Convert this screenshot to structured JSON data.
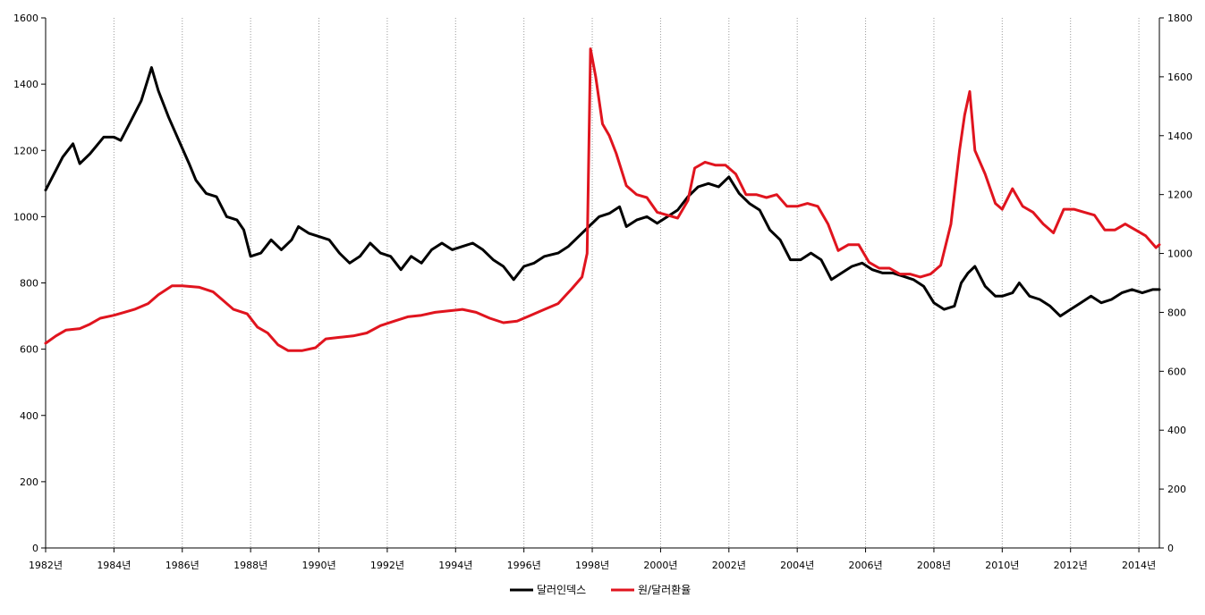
{
  "chart_data": {
    "type": "line",
    "title": "",
    "xlabel": "",
    "x_tick_labels": [
      "1982년",
      "1984년",
      "1986년",
      "1988년",
      "1990년",
      "1992년",
      "1994년",
      "1996년",
      "1998년",
      "2000년",
      "2002년",
      "2004년",
      "2006년",
      "2008년",
      "2010년",
      "2012년",
      "2014년"
    ],
    "x_tick_years": [
      1982,
      1984,
      1986,
      1988,
      1990,
      1992,
      1994,
      1996,
      1998,
      2000,
      2002,
      2004,
      2006,
      2008,
      2010,
      2012,
      2014
    ],
    "xlim": [
      1982.0,
      2014.6
    ],
    "grid": {
      "vertical": true,
      "horizontal": false
    },
    "legend_position": "bottom-center",
    "y_left": {
      "ylim": [
        0,
        1600
      ],
      "ticks": [
        "0",
        "200",
        "400",
        "600",
        "800",
        "1000",
        "1200",
        "1400",
        "1600"
      ]
    },
    "y_right": {
      "ylim": [
        0,
        1800
      ],
      "ticks": [
        "0",
        "200",
        "400",
        "600",
        "800",
        "1000",
        "1200",
        "1400",
        "1600",
        "1800"
      ]
    },
    "series": [
      {
        "name": "달러인덱스",
        "axis": "left",
        "color": "#000000",
        "points": [
          [
            1982.0,
            1080
          ],
          [
            1982.3,
            1140
          ],
          [
            1982.5,
            1180
          ],
          [
            1982.8,
            1220
          ],
          [
            1983.0,
            1160
          ],
          [
            1983.3,
            1190
          ],
          [
            1983.7,
            1240
          ],
          [
            1984.0,
            1240
          ],
          [
            1984.2,
            1230
          ],
          [
            1984.5,
            1290
          ],
          [
            1984.8,
            1350
          ],
          [
            1985.1,
            1450
          ],
          [
            1985.3,
            1380
          ],
          [
            1985.6,
            1300
          ],
          [
            1985.9,
            1230
          ],
          [
            1986.2,
            1160
          ],
          [
            1986.4,
            1110
          ],
          [
            1986.7,
            1070
          ],
          [
            1987.0,
            1060
          ],
          [
            1987.3,
            1000
          ],
          [
            1987.6,
            990
          ],
          [
            1987.8,
            960
          ],
          [
            1988.0,
            880
          ],
          [
            1988.3,
            890
          ],
          [
            1988.6,
            930
          ],
          [
            1988.9,
            900
          ],
          [
            1989.2,
            930
          ],
          [
            1989.4,
            970
          ],
          [
            1989.7,
            950
          ],
          [
            1990.0,
            940
          ],
          [
            1990.3,
            930
          ],
          [
            1990.6,
            890
          ],
          [
            1990.9,
            860
          ],
          [
            1991.2,
            880
          ],
          [
            1991.5,
            920
          ],
          [
            1991.8,
            890
          ],
          [
            1992.1,
            880
          ],
          [
            1992.4,
            840
          ],
          [
            1992.7,
            880
          ],
          [
            1993.0,
            860
          ],
          [
            1993.3,
            900
          ],
          [
            1993.6,
            920
          ],
          [
            1993.9,
            900
          ],
          [
            1994.2,
            910
          ],
          [
            1994.5,
            920
          ],
          [
            1994.8,
            900
          ],
          [
            1995.1,
            870
          ],
          [
            1995.4,
            850
          ],
          [
            1995.7,
            810
          ],
          [
            1996.0,
            850
          ],
          [
            1996.3,
            860
          ],
          [
            1996.6,
            880
          ],
          [
            1997.0,
            890
          ],
          [
            1997.3,
            910
          ],
          [
            1997.6,
            940
          ],
          [
            1997.9,
            970
          ],
          [
            1998.2,
            1000
          ],
          [
            1998.5,
            1010
          ],
          [
            1998.8,
            1030
          ],
          [
            1999.0,
            970
          ],
          [
            1999.3,
            990
          ],
          [
            1999.6,
            1000
          ],
          [
            1999.9,
            980
          ],
          [
            2000.2,
            1000
          ],
          [
            2000.5,
            1020
          ],
          [
            2000.8,
            1060
          ],
          [
            2001.1,
            1090
          ],
          [
            2001.4,
            1100
          ],
          [
            2001.7,
            1090
          ],
          [
            2002.0,
            1120
          ],
          [
            2002.3,
            1070
          ],
          [
            2002.6,
            1040
          ],
          [
            2002.9,
            1020
          ],
          [
            2003.2,
            960
          ],
          [
            2003.5,
            930
          ],
          [
            2003.8,
            870
          ],
          [
            2004.1,
            870
          ],
          [
            2004.4,
            890
          ],
          [
            2004.7,
            870
          ],
          [
            2005.0,
            810
          ],
          [
            2005.3,
            830
          ],
          [
            2005.6,
            850
          ],
          [
            2005.9,
            860
          ],
          [
            2006.2,
            840
          ],
          [
            2006.5,
            830
          ],
          [
            2006.8,
            830
          ],
          [
            2007.1,
            820
          ],
          [
            2007.4,
            810
          ],
          [
            2007.7,
            790
          ],
          [
            2008.0,
            740
          ],
          [
            2008.3,
            720
          ],
          [
            2008.6,
            730
          ],
          [
            2008.8,
            800
          ],
          [
            2009.0,
            830
          ],
          [
            2009.2,
            850
          ],
          [
            2009.5,
            790
          ],
          [
            2009.8,
            760
          ],
          [
            2010.0,
            760
          ],
          [
            2010.3,
            770
          ],
          [
            2010.5,
            800
          ],
          [
            2010.8,
            760
          ],
          [
            2011.1,
            750
          ],
          [
            2011.4,
            730
          ],
          [
            2011.7,
            700
          ],
          [
            2012.0,
            720
          ],
          [
            2012.3,
            740
          ],
          [
            2012.6,
            760
          ],
          [
            2012.9,
            740
          ],
          [
            2013.2,
            750
          ],
          [
            2013.5,
            770
          ],
          [
            2013.8,
            780
          ],
          [
            2014.1,
            770
          ],
          [
            2014.4,
            780
          ],
          [
            2014.6,
            780
          ]
        ]
      },
      {
        "name": "원/달러환율",
        "axis": "right",
        "color": "#e0141e",
        "points": [
          [
            1982.0,
            695
          ],
          [
            1982.3,
            720
          ],
          [
            1982.6,
            740
          ],
          [
            1983.0,
            745
          ],
          [
            1983.3,
            760
          ],
          [
            1983.6,
            780
          ],
          [
            1984.0,
            790
          ],
          [
            1984.3,
            800
          ],
          [
            1984.6,
            810
          ],
          [
            1985.0,
            830
          ],
          [
            1985.3,
            860
          ],
          [
            1985.7,
            890
          ],
          [
            1986.0,
            890
          ],
          [
            1986.5,
            885
          ],
          [
            1986.9,
            870
          ],
          [
            1987.2,
            840
          ],
          [
            1987.5,
            810
          ],
          [
            1987.9,
            795
          ],
          [
            1988.2,
            750
          ],
          [
            1988.5,
            730
          ],
          [
            1988.8,
            690
          ],
          [
            1989.1,
            670
          ],
          [
            1989.5,
            670
          ],
          [
            1989.9,
            680
          ],
          [
            1990.2,
            710
          ],
          [
            1990.6,
            715
          ],
          [
            1991.0,
            720
          ],
          [
            1991.4,
            730
          ],
          [
            1991.8,
            755
          ],
          [
            1992.2,
            770
          ],
          [
            1992.6,
            785
          ],
          [
            1993.0,
            790
          ],
          [
            1993.4,
            800
          ],
          [
            1993.8,
            805
          ],
          [
            1994.2,
            810
          ],
          [
            1994.6,
            800
          ],
          [
            1995.0,
            780
          ],
          [
            1995.4,
            765
          ],
          [
            1995.8,
            770
          ],
          [
            1996.2,
            790
          ],
          [
            1996.6,
            810
          ],
          [
            1997.0,
            830
          ],
          [
            1997.4,
            880
          ],
          [
            1997.7,
            920
          ],
          [
            1997.85,
            1000
          ],
          [
            1997.95,
            1695
          ],
          [
            1998.1,
            1600
          ],
          [
            1998.3,
            1440
          ],
          [
            1998.5,
            1400
          ],
          [
            1998.7,
            1340
          ],
          [
            1999.0,
            1230
          ],
          [
            1999.3,
            1200
          ],
          [
            1999.6,
            1190
          ],
          [
            1999.9,
            1140
          ],
          [
            2000.2,
            1130
          ],
          [
            2000.5,
            1120
          ],
          [
            2000.8,
            1180
          ],
          [
            2001.0,
            1290
          ],
          [
            2001.3,
            1310
          ],
          [
            2001.6,
            1300
          ],
          [
            2001.9,
            1300
          ],
          [
            2002.2,
            1270
          ],
          [
            2002.5,
            1200
          ],
          [
            2002.8,
            1200
          ],
          [
            2003.1,
            1190
          ],
          [
            2003.4,
            1200
          ],
          [
            2003.7,
            1160
          ],
          [
            2004.0,
            1160
          ],
          [
            2004.3,
            1170
          ],
          [
            2004.6,
            1160
          ],
          [
            2004.9,
            1100
          ],
          [
            2005.2,
            1010
          ],
          [
            2005.5,
            1030
          ],
          [
            2005.8,
            1030
          ],
          [
            2006.1,
            970
          ],
          [
            2006.4,
            950
          ],
          [
            2006.7,
            950
          ],
          [
            2007.0,
            930
          ],
          [
            2007.3,
            930
          ],
          [
            2007.6,
            920
          ],
          [
            2007.9,
            930
          ],
          [
            2008.2,
            960
          ],
          [
            2008.5,
            1100
          ],
          [
            2008.75,
            1350
          ],
          [
            2008.9,
            1470
          ],
          [
            2009.05,
            1550
          ],
          [
            2009.2,
            1350
          ],
          [
            2009.5,
            1270
          ],
          [
            2009.8,
            1170
          ],
          [
            2010.0,
            1150
          ],
          [
            2010.3,
            1220
          ],
          [
            2010.6,
            1160
          ],
          [
            2010.9,
            1140
          ],
          [
            2011.2,
            1100
          ],
          [
            2011.5,
            1070
          ],
          [
            2011.8,
            1150
          ],
          [
            2012.1,
            1150
          ],
          [
            2012.4,
            1140
          ],
          [
            2012.7,
            1130
          ],
          [
            2013.0,
            1080
          ],
          [
            2013.3,
            1080
          ],
          [
            2013.6,
            1100
          ],
          [
            2013.9,
            1080
          ],
          [
            2014.2,
            1060
          ],
          [
            2014.5,
            1020
          ],
          [
            2014.6,
            1030
          ]
        ]
      }
    ]
  }
}
